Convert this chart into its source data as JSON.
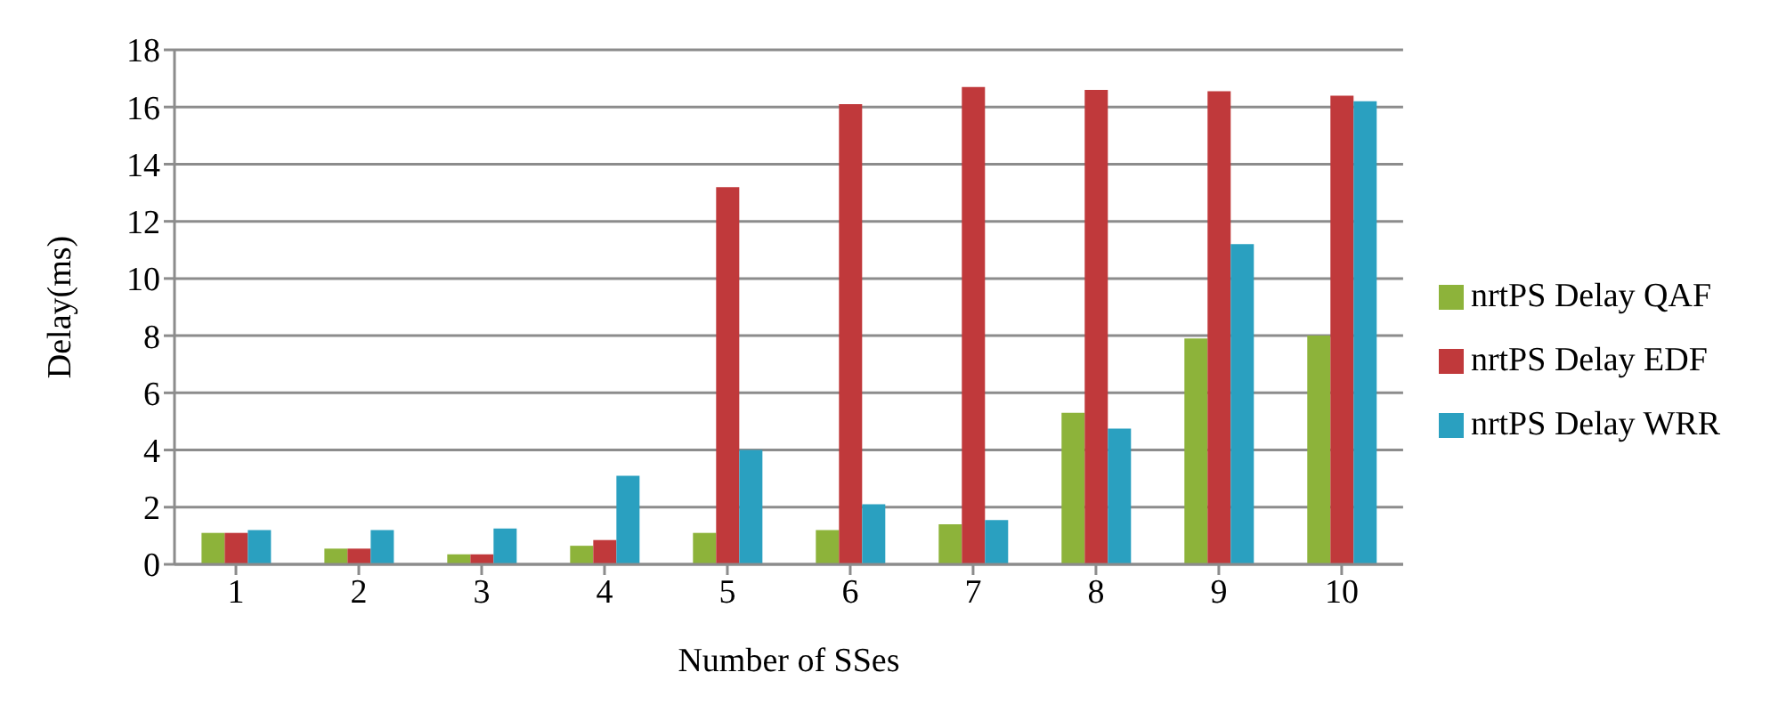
{
  "chart_data": {
    "type": "bar",
    "xlabel": "Number of SSes",
    "ylabel": "Delay(ms)",
    "categories": [
      "1",
      "2",
      "3",
      "4",
      "5",
      "6",
      "7",
      "8",
      "9",
      "10"
    ],
    "series": [
      {
        "name": "nrtPS Delay QAF",
        "color": "#8db33a",
        "values": [
          1.1,
          0.55,
          0.35,
          0.65,
          1.1,
          1.2,
          1.4,
          5.3,
          7.9,
          8.0
        ]
      },
      {
        "name": "nrtPS Delay EDF",
        "color": "#c0393b",
        "values": [
          1.1,
          0.55,
          0.35,
          0.85,
          13.2,
          16.1,
          16.7,
          16.6,
          16.55,
          16.4
        ]
      },
      {
        "name": "nrtPS Delay WRR",
        "color": "#2aa0c0",
        "values": [
          1.2,
          1.2,
          1.25,
          3.1,
          4.0,
          2.1,
          1.55,
          4.75,
          11.2,
          16.2
        ]
      }
    ],
    "ylim": [
      0,
      18
    ],
    "yticks": [
      0,
      2,
      4,
      6,
      8,
      10,
      12,
      14,
      16,
      18
    ],
    "grid": "y",
    "legend": "right"
  }
}
